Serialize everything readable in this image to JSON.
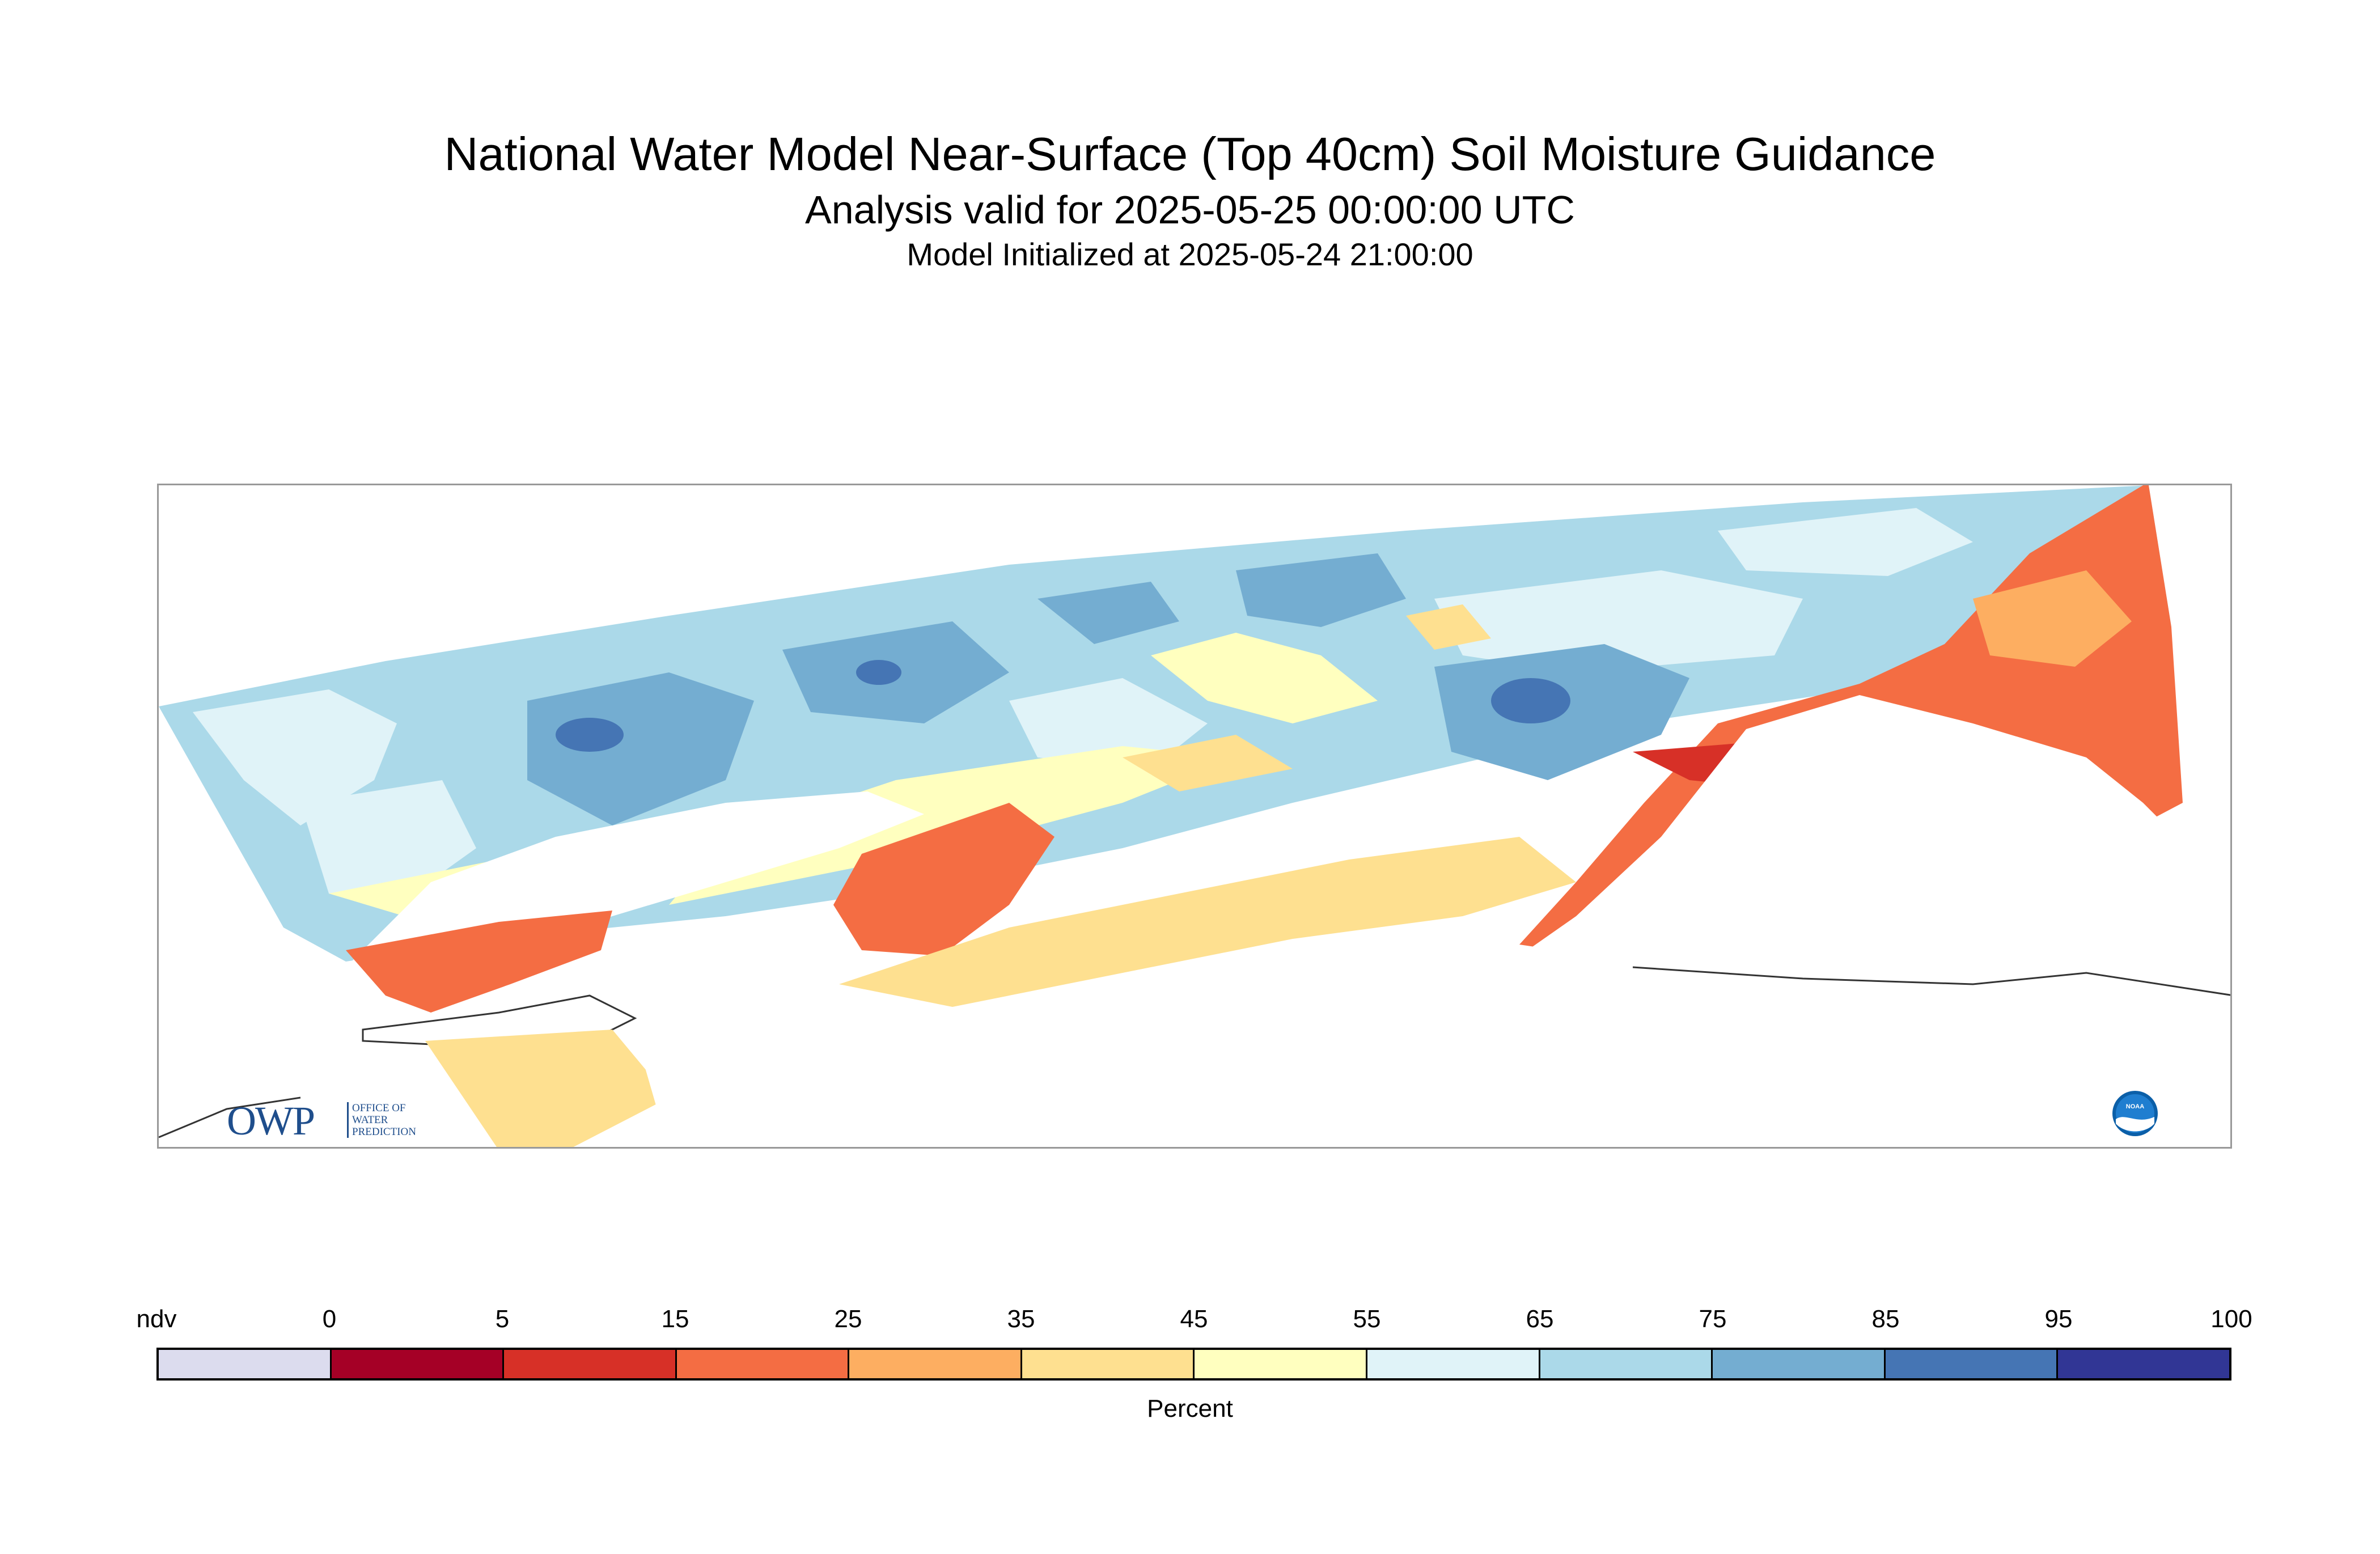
{
  "title": "National Water Model Near-Surface (Top 40cm) Soil Moisture Guidance",
  "subtitle": "Analysis valid for 2025-05-25 00:00:00 UTC",
  "init_line": "Model Initialized at 2025-05-24 21:00:00",
  "logos": {
    "owp_letters": "OWP",
    "owp_lines": [
      "OFFICE OF",
      "WATER",
      "PREDICTION"
    ],
    "noaa_text": "NOAA"
  },
  "colorbar": {
    "unit_label": "Percent",
    "tick_labels": [
      "ndv",
      "0",
      "5",
      "15",
      "25",
      "35",
      "45",
      "55",
      "65",
      "75",
      "85",
      "95",
      "100"
    ],
    "bins": [
      {
        "range": "ndv",
        "color": "#dcdcee"
      },
      {
        "range": "0-5",
        "color": "#a50026"
      },
      {
        "range": "5-15",
        "color": "#d73027"
      },
      {
        "range": "15-25",
        "color": "#f46d43"
      },
      {
        "range": "25-35",
        "color": "#fdae61"
      },
      {
        "range": "35-45",
        "color": "#fee090"
      },
      {
        "range": "45-55",
        "color": "#ffffbf"
      },
      {
        "range": "55-65",
        "color": "#e0f3f8"
      },
      {
        "range": "65-75",
        "color": "#abd9e9"
      },
      {
        "range": "75-85",
        "color": "#74add1"
      },
      {
        "range": "85-95",
        "color": "#4575b4"
      },
      {
        "range": "95-100",
        "color": "#313695"
      }
    ]
  },
  "map": {
    "region_note": "",
    "dominant_west": "#abd9e9",
    "dominant_east": "#f46d43"
  }
}
